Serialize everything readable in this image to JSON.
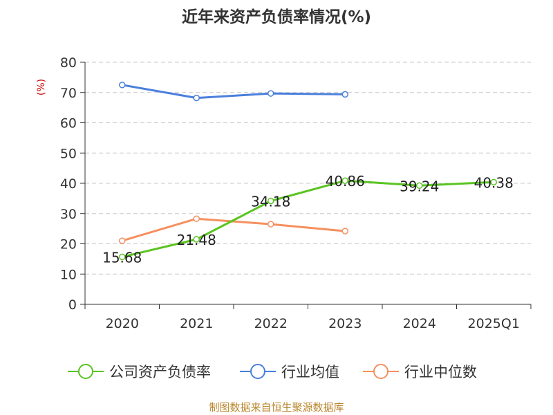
{
  "chart_data": {
    "type": "line",
    "title": "近年来资产负债率情况(%)",
    "ylabel": "(%)",
    "categories": [
      "2020",
      "2021",
      "2022",
      "2023",
      "2024",
      "2025Q1"
    ],
    "ylim": [
      0,
      80
    ],
    "yticks": [
      0,
      10,
      20,
      30,
      40,
      50,
      60,
      70,
      80
    ],
    "grid": true,
    "legend_position": "bottom",
    "series": [
      {
        "name": "公司资产负债率",
        "color": "#5ac421",
        "values": [
          15.68,
          21.48,
          34.18,
          40.86,
          39.24,
          40.38
        ],
        "show_labels": true
      },
      {
        "name": "行业均值",
        "color": "#4a7fdc",
        "values": [
          72.5,
          68.2,
          69.7,
          69.4,
          null,
          null
        ],
        "show_labels": false
      },
      {
        "name": "行业中位数",
        "color": "#f5905f",
        "values": [
          21.0,
          28.3,
          26.5,
          24.2,
          null,
          null
        ],
        "show_labels": false
      }
    ],
    "source": "制图数据来自恒生聚源数据库"
  }
}
